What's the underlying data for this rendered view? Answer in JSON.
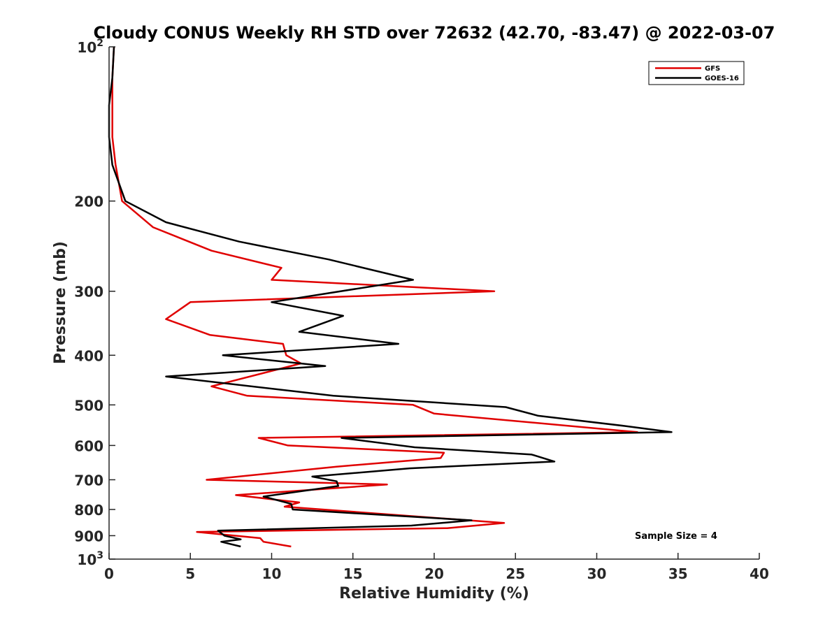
{
  "chart_data": {
    "type": "line",
    "title": "Cloudy CONUS Weekly RH STD over 72632 (42.70, -83.47) @ 2022-03-07",
    "xlabel": "Relative Humidity (%)",
    "ylabel": "Pressure (mb)",
    "xlim": [
      0,
      40
    ],
    "ylim": [
      100,
      1000
    ],
    "y_scale": "log",
    "y_reversed": true,
    "grid": false,
    "legend_position": "top-right",
    "x_ticks": [
      "0",
      "5",
      "10",
      "15",
      "20",
      "25",
      "30",
      "35",
      "40"
    ],
    "y_ticks": [
      {
        "value": 100,
        "base": "10",
        "exp": "2"
      },
      {
        "value": 200,
        "base": "200",
        "exp": ""
      },
      {
        "value": 300,
        "base": "300",
        "exp": ""
      },
      {
        "value": 400,
        "base": "400",
        "exp": ""
      },
      {
        "value": 500,
        "base": "500",
        "exp": ""
      },
      {
        "value": 600,
        "base": "600",
        "exp": ""
      },
      {
        "value": 700,
        "base": "700",
        "exp": ""
      },
      {
        "value": 800,
        "base": "800",
        "exp": ""
      },
      {
        "value": 900,
        "base": "900",
        "exp": ""
      },
      {
        "value": 1000,
        "base": "10",
        "exp": "3"
      }
    ],
    "annotation": "Sample Size = 4",
    "series": [
      {
        "name": "GFS",
        "color": "#e00000",
        "points": [
          [
            0.3,
            100
          ],
          [
            0.2,
            115
          ],
          [
            0.2,
            130
          ],
          [
            0.2,
            150
          ],
          [
            0.4,
            170
          ],
          [
            0.8,
            200
          ],
          [
            2.7,
            225
          ],
          [
            6.3,
            250
          ],
          [
            10.6,
            270
          ],
          [
            10.0,
            285
          ],
          [
            23.7,
            300
          ],
          [
            5.0,
            315
          ],
          [
            3.5,
            340
          ],
          [
            6.2,
            365
          ],
          [
            10.7,
            380
          ],
          [
            10.9,
            400
          ],
          [
            11.8,
            415
          ],
          [
            6.3,
            460
          ],
          [
            8.5,
            480
          ],
          [
            18.7,
            500
          ],
          [
            20.0,
            520
          ],
          [
            32.5,
            565
          ],
          [
            9.2,
            580
          ],
          [
            11.0,
            600
          ],
          [
            20.6,
            620
          ],
          [
            20.4,
            635
          ],
          [
            14.0,
            660
          ],
          [
            6.0,
            700
          ],
          [
            17.1,
            715
          ],
          [
            7.8,
            750
          ],
          [
            11.7,
            775
          ],
          [
            10.8,
            790
          ],
          [
            24.3,
            850
          ],
          [
            20.8,
            870
          ],
          [
            5.4,
            885
          ],
          [
            9.3,
            910
          ],
          [
            9.5,
            925
          ],
          [
            11.2,
            945
          ]
        ]
      },
      {
        "name": "GOES-16",
        "color": "#000000",
        "points": [
          [
            0.3,
            100
          ],
          [
            0.2,
            115
          ],
          [
            0.0,
            130
          ],
          [
            0.0,
            150
          ],
          [
            0.2,
            170
          ],
          [
            1.0,
            200
          ],
          [
            3.5,
            220
          ],
          [
            8.0,
            240
          ],
          [
            13.5,
            260
          ],
          [
            18.7,
            285
          ],
          [
            10.0,
            315
          ],
          [
            14.4,
            335
          ],
          [
            11.7,
            360
          ],
          [
            17.8,
            380
          ],
          [
            7.0,
            400
          ],
          [
            13.3,
            420
          ],
          [
            3.5,
            440
          ],
          [
            13.8,
            480
          ],
          [
            24.4,
            505
          ],
          [
            26.4,
            525
          ],
          [
            31.8,
            550
          ],
          [
            34.6,
            565
          ],
          [
            14.3,
            580
          ],
          [
            18.8,
            605
          ],
          [
            26.0,
            625
          ],
          [
            27.4,
            645
          ],
          [
            18.5,
            665
          ],
          [
            12.5,
            690
          ],
          [
            14.0,
            705
          ],
          [
            14.1,
            720
          ],
          [
            9.5,
            755
          ],
          [
            11.2,
            780
          ],
          [
            11.3,
            800
          ],
          [
            22.3,
            840
          ],
          [
            18.6,
            860
          ],
          [
            6.7,
            880
          ],
          [
            7.1,
            900
          ],
          [
            8.1,
            915
          ],
          [
            6.9,
            925
          ],
          [
            8.1,
            945
          ]
        ]
      }
    ]
  }
}
